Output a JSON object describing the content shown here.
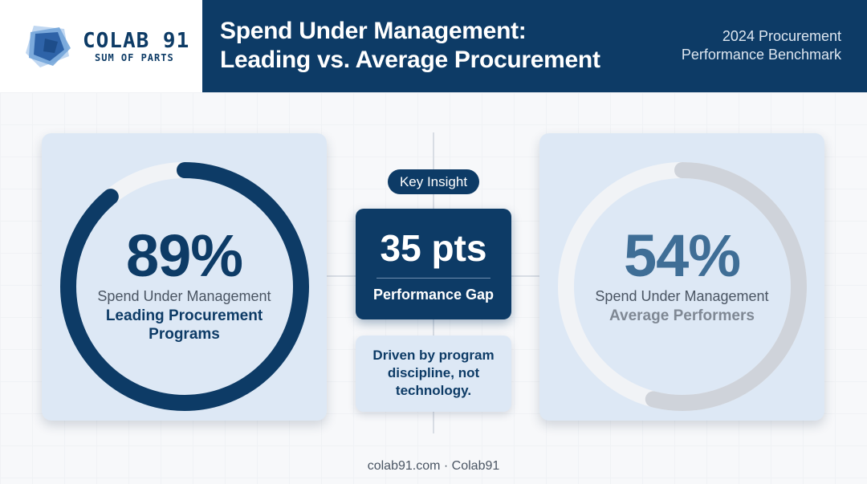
{
  "header": {
    "logo_name": "COLAB 91",
    "logo_tagline": "SUM OF PARTS",
    "title_line1": "Spend Under Management:",
    "title_line2": "Leading vs. Average Procurement",
    "subtitle_line1": "2024 Procurement",
    "subtitle_line2": "Performance Benchmark"
  },
  "chart_data": [
    {
      "type": "pie",
      "name": "leading",
      "value_label": "89%",
      "value": 89,
      "max": 100,
      "caption": "Spend Under Management",
      "label_lines": [
        "Leading Procurement",
        "Programs"
      ],
      "ring_color": "#0d3b66",
      "track_color": "#f1f3f6"
    },
    {
      "type": "pie",
      "name": "average",
      "value_label": "54%",
      "value": 54,
      "max": 100,
      "caption": "Spend Under Management",
      "label_lines": [
        "Average Performers"
      ],
      "ring_color": "#cfd3da",
      "track_color": "#f1f3f6"
    }
  ],
  "center": {
    "insight_label": "Key Insight",
    "gap_value": "35 pts",
    "gap_label": "Performance Gap",
    "note_lines": [
      "Driven by program",
      "discipline, not",
      "technology."
    ]
  },
  "footer": {
    "text": "colab91.com · Colab91"
  }
}
